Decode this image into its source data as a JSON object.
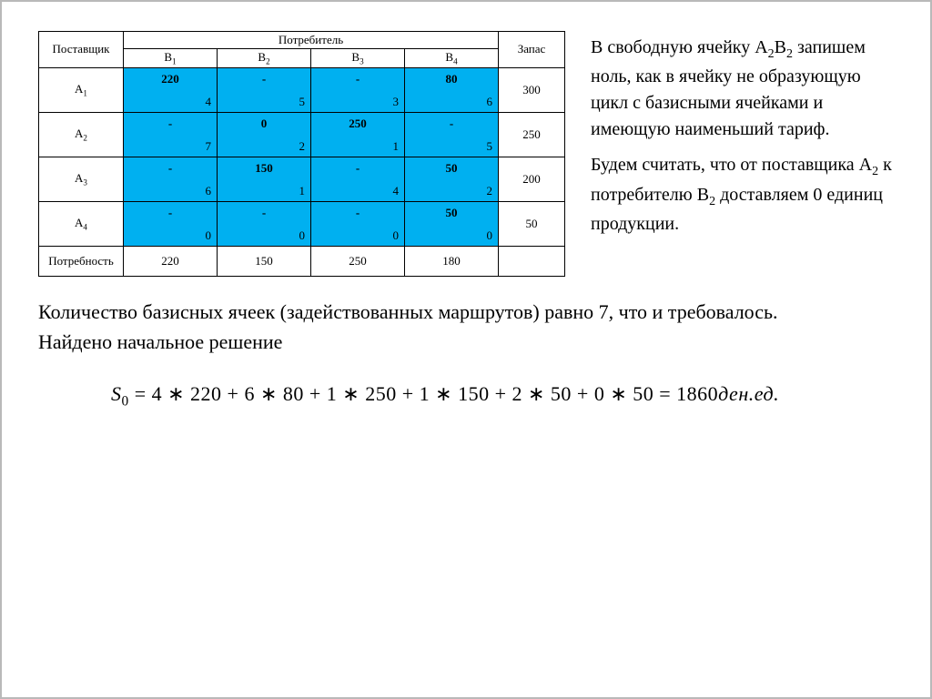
{
  "table": {
    "headers": {
      "supplier": "Поставщик",
      "consumer": "Потребитель",
      "stock": "Запас",
      "demand": "Потребность",
      "consumers": [
        "B",
        "B",
        "B",
        "B"
      ],
      "consumer_subs": [
        "1",
        "2",
        "3",
        "4"
      ]
    },
    "suppliers": [
      "A",
      "A",
      "A",
      "A"
    ],
    "supplier_subs": [
      "1",
      "2",
      "3",
      "4"
    ],
    "cells": [
      [
        {
          "alloc": "220",
          "tariff": "4"
        },
        {
          "alloc": "-",
          "tariff": "5"
        },
        {
          "alloc": "-",
          "tariff": "3"
        },
        {
          "alloc": "80",
          "tariff": "6"
        }
      ],
      [
        {
          "alloc": "-",
          "tariff": "7"
        },
        {
          "alloc": "0",
          "tariff": "2"
        },
        {
          "alloc": "250",
          "tariff": "1"
        },
        {
          "alloc": "-",
          "tariff": "5"
        }
      ],
      [
        {
          "alloc": "-",
          "tariff": "6"
        },
        {
          "alloc": "150",
          "tariff": "1"
        },
        {
          "alloc": "-",
          "tariff": "4"
        },
        {
          "alloc": "50",
          "tariff": "2"
        }
      ],
      [
        {
          "alloc": "-",
          "tariff": "0"
        },
        {
          "alloc": "-",
          "tariff": "0"
        },
        {
          "alloc": "-",
          "tariff": "0"
        },
        {
          "alloc": "50",
          "tariff": "0"
        }
      ]
    ],
    "stock": [
      "300",
      "250",
      "200",
      "50"
    ],
    "demand": [
      "220",
      "150",
      "250",
      "180"
    ],
    "colors": {
      "cell_bg": "#00b0f0",
      "border": "#000000"
    }
  },
  "text": {
    "para1a": "В свободную ячейку A",
    "para1b": "B",
    "para1c": " запишем ноль, как в ячейку не образующую цикл с базисными ячейками и имеющую наименьший тариф.",
    "para2a": "Будем считать, что от поставщика A",
    "para2b": " к потребителю B",
    "para2c": " доставляем 0 единиц продукции.",
    "sub2": "2",
    "bottom1": "Количество базисных ячеек (задействованных маршрутов) равно 7, что и требовалось.",
    "bottom2": "Найдено начальное решение"
  },
  "formula": {
    "lhs": "S",
    "sub": "0",
    "eq": " = 4 ∗ 220 + 6 ∗ 80 + 1 ∗ 250 + 1 ∗ 150 + 2 ∗ 50 + 0 ∗ 50 = 1860",
    "unit": "ден.ед."
  }
}
